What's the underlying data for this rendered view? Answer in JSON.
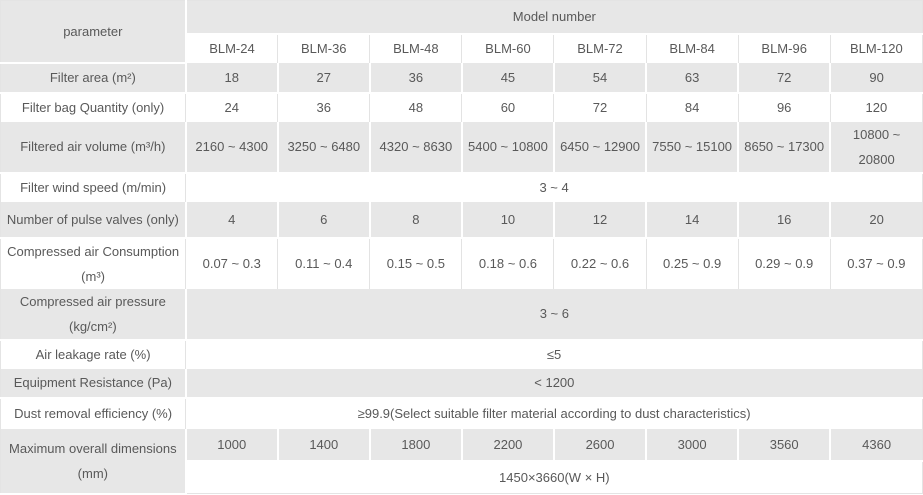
{
  "table": {
    "parameter_label": "parameter",
    "model_header": "Model number",
    "models": [
      "BLM-24",
      "BLM-36",
      "BLM-48",
      "BLM-60",
      "BLM-72",
      "BLM-84",
      "BLM-96",
      "BLM-120"
    ],
    "rows": [
      {
        "label": "Filter area (m²)",
        "values": [
          "18",
          "27",
          "36",
          "45",
          "54",
          "63",
          "72",
          "90"
        ]
      },
      {
        "label": "Filter bag Quantity (only)",
        "values": [
          "24",
          "36",
          "48",
          "60",
          "72",
          "84",
          "96",
          "120"
        ]
      },
      {
        "label": "Filtered air volume (m³/h)",
        "values": [
          "2160 ~ 4300",
          "3250 ~ 6480",
          "4320 ~ 8630",
          "5400 ~ 10800",
          "6450 ~ 12900",
          "7550 ~ 15100",
          "8650 ~ 17300",
          "10800 ~ 20800"
        ]
      },
      {
        "label": "Filter wind speed (m/min)",
        "value": "3 ~ 4"
      },
      {
        "label": "Number of pulse valves (only)",
        "values": [
          "4",
          "6",
          "8",
          "10",
          "12",
          "14",
          "16",
          "20"
        ]
      },
      {
        "label": "Compressed air Consumption (m³)",
        "values": [
          "0.07 ~ 0.3",
          "0.11 ~ 0.4",
          "0.15 ~ 0.5",
          "0.18 ~ 0.6",
          "0.22 ~ 0.6",
          "0.25 ~ 0.9",
          "0.29 ~ 0.9",
          "0.37 ~ 0.9"
        ]
      },
      {
        "label": "Compressed air pressure (kg/cm²)",
        "value": "3 ~ 6"
      },
      {
        "label": "Air leakage rate (%)",
        "value": "≤5"
      },
      {
        "label": "Equipment Resistance (Pa)",
        "value": "< 1200"
      },
      {
        "label": "Dust removal efficiency (%)",
        "value": "≥99.9(Select suitable filter material according to dust characteristics)"
      },
      {
        "label": "Maximum overall dimensions (mm)",
        "values": [
          "1000",
          "1400",
          "1800",
          "2200",
          "2600",
          "3000",
          "3560",
          "4360"
        ]
      },
      {
        "value": "1450×3660(W  ×  H)"
      }
    ],
    "colors": {
      "row_shade": "#e7e7e7",
      "cell_border": "#e3e3e3",
      "text": "#595959"
    }
  }
}
